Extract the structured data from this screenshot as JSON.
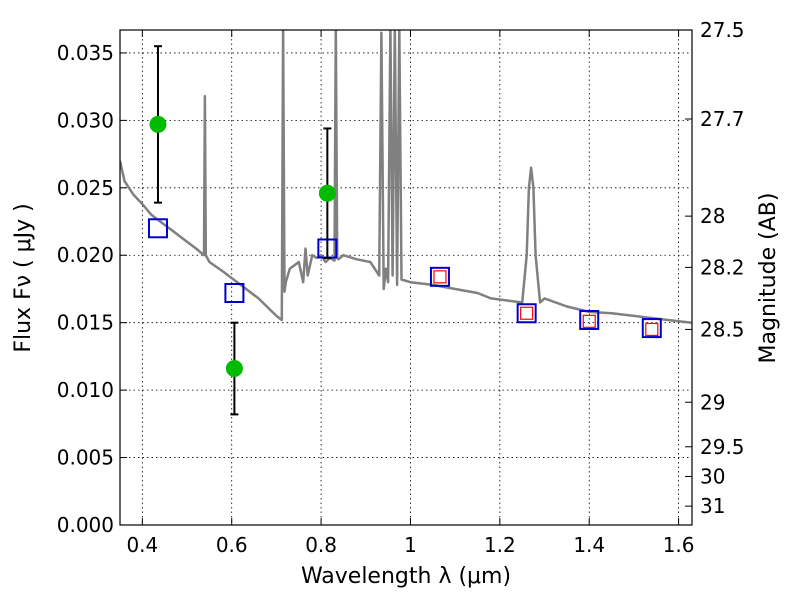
{
  "chart_data": {
    "type": "scatter",
    "xlabel": "Wavelength  λ (μm)",
    "ylabel": "Flux  Fν  ( μJy )",
    "y2label": "Magnitude (AB)",
    "xlim": [
      0.35,
      1.63
    ],
    "ylim": [
      0.0,
      0.0367
    ],
    "grid": true,
    "x_ticks": [
      0.4,
      0.6,
      0.8,
      1.0,
      1.2,
      1.4,
      1.6
    ],
    "x_tick_labels": [
      "0.4",
      "0.6",
      "0.8",
      "1",
      "1.2",
      "1.4",
      "1.6"
    ],
    "y_ticks": [
      0.0,
      0.005,
      0.01,
      0.015,
      0.02,
      0.025,
      0.03,
      0.035
    ],
    "y_tick_labels": [
      "0.000",
      "0.005",
      "0.010",
      "0.015",
      "0.020",
      "0.025",
      "0.030",
      "0.035"
    ],
    "y2_ticks": [
      {
        "label": "27.5",
        "flux": 0.0367
      },
      {
        "label": "27.7",
        "flux": 0.0301
      },
      {
        "label": "28",
        "flux": 0.0229
      },
      {
        "label": "28.2",
        "flux": 0.0191
      },
      {
        "label": "28.5",
        "flux": 0.0145
      },
      {
        "label": "29",
        "flux": 0.0091
      },
      {
        "label": "29.5",
        "flux": 0.0058
      },
      {
        "label": "30",
        "flux": 0.0036
      },
      {
        "label": "31",
        "flux": 0.0014
      }
    ],
    "series": [
      {
        "style": "model-spectrum",
        "color": "#808080",
        "x": [
          0.35,
          0.36,
          0.37,
          0.38,
          0.4,
          0.42,
          0.44,
          0.46,
          0.48,
          0.5,
          0.52,
          0.538,
          0.54,
          0.542,
          0.55,
          0.58,
          0.62,
          0.66,
          0.7,
          0.712,
          0.715,
          0.718,
          0.721,
          0.73,
          0.75,
          0.76,
          0.765,
          0.77,
          0.78,
          0.79,
          0.8,
          0.81,
          0.82,
          0.83,
          0.833,
          0.836,
          0.839,
          0.85,
          0.88,
          0.91,
          0.93,
          0.935,
          0.94,
          0.945,
          0.95,
          0.955,
          0.96,
          0.965,
          0.97,
          0.975,
          0.98,
          1.0,
          1.05,
          1.1,
          1.15,
          1.18,
          1.25,
          1.26,
          1.265,
          1.27,
          1.275,
          1.28,
          1.29,
          1.3,
          1.35,
          1.4,
          1.45,
          1.5,
          1.55,
          1.6,
          1.63
        ],
        "y": [
          0.027,
          0.0255,
          0.025,
          0.0245,
          0.0238,
          0.023,
          0.0225,
          0.022,
          0.0215,
          0.021,
          0.0205,
          0.02,
          0.0318,
          0.02,
          0.0195,
          0.0188,
          0.0178,
          0.0168,
          0.0155,
          0.0152,
          0.037,
          0.0173,
          0.018,
          0.019,
          0.0195,
          0.018,
          0.0205,
          0.0185,
          0.02,
          0.0198,
          0.02,
          0.0195,
          0.0198,
          0.0196,
          0.037,
          0.0198,
          0.0197,
          0.02,
          0.0197,
          0.0195,
          0.0185,
          0.0365,
          0.0175,
          0.019,
          0.018,
          0.037,
          0.0185,
          0.037,
          0.0178,
          0.037,
          0.0182,
          0.018,
          0.0178,
          0.0175,
          0.0172,
          0.0168,
          0.0165,
          0.02,
          0.025,
          0.0265,
          0.025,
          0.02,
          0.0165,
          0.0168,
          0.0162,
          0.0158,
          0.0157,
          0.0155,
          0.0153,
          0.0151,
          0.015
        ]
      },
      {
        "style": "observed",
        "color": "#00bb00",
        "points": [
          {
            "x": 0.435,
            "y": 0.0297,
            "yerr": 0.0058
          },
          {
            "x": 0.606,
            "y": 0.0116,
            "yerr": 0.0034
          },
          {
            "x": 0.814,
            "y": 0.0246,
            "yerr": 0.0048
          }
        ]
      },
      {
        "style": "model-photometry",
        "color": "#0000cc",
        "points": [
          {
            "x": 0.435,
            "y": 0.022
          },
          {
            "x": 0.606,
            "y": 0.0172
          },
          {
            "x": 0.814,
            "y": 0.0205
          },
          {
            "x": 1.066,
            "y": 0.0184
          },
          {
            "x": 1.26,
            "y": 0.0157
          },
          {
            "x": 1.4,
            "y": 0.0152
          },
          {
            "x": 1.54,
            "y": 0.0146
          }
        ]
      },
      {
        "style": "upper-limit",
        "color": "#ff0000",
        "points": [
          {
            "x": 1.066,
            "y": 0.0184
          },
          {
            "x": 1.26,
            "y": 0.0157
          },
          {
            "x": 1.4,
            "y": 0.0151
          },
          {
            "x": 1.54,
            "y": 0.0145
          }
        ]
      }
    ]
  }
}
